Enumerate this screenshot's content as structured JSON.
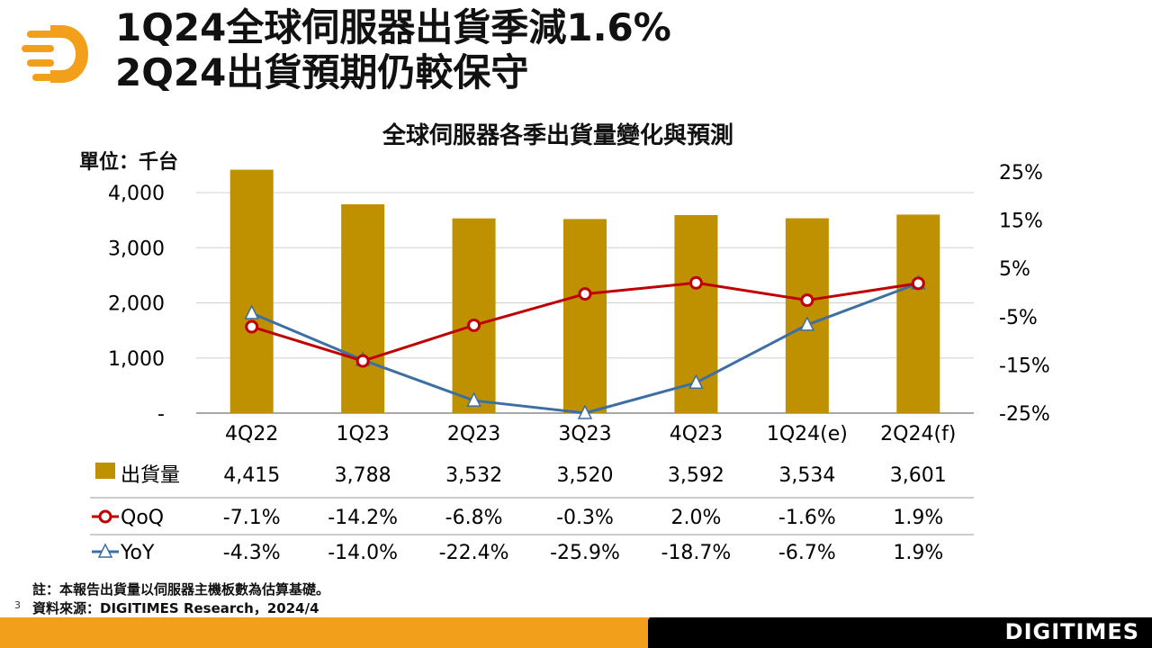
{
  "header": {
    "title_line1": "1Q24全球伺服器出貨季減1.6%",
    "title_line2": "2Q24出貨預期仍較保守"
  },
  "brand": "DIGITIMES",
  "page_number": "3",
  "footnote": "註：本報告出貨量以伺服器主機板數為估算基礎。",
  "source": "資料來源：DIGITIMES Research，2024/4",
  "colors": {
    "bar": "#bf9000",
    "qoq": "#c00000",
    "yoy": "#3e6fa3",
    "accent": "#f29f1c"
  },
  "chart_data": {
    "type": "bar",
    "title": "全球伺服器各季出貨量變化與預測",
    "unit_label": "單位：千台",
    "categories": [
      "4Q22",
      "1Q23",
      "2Q23",
      "3Q23",
      "4Q23",
      "1Q24(e)",
      "2Q24(f)"
    ],
    "left_axis": {
      "ylim": [
        0,
        4000
      ],
      "ticks": [
        0,
        1000,
        2000,
        3000,
        4000
      ],
      "tick_labels": [
        "-",
        "1,000",
        "2,000",
        "3,000",
        "4,000"
      ]
    },
    "right_axis": {
      "ylim": [
        -25,
        25
      ],
      "ticks": [
        -25,
        -15,
        -5,
        5,
        15,
        25
      ],
      "tick_labels": [
        "-25%",
        "-15%",
        "-5%",
        "5%",
        "15%",
        "25%"
      ]
    },
    "series": [
      {
        "name": "出貨量",
        "kind": "bar",
        "axis": "left",
        "values": [
          4415,
          3788,
          3532,
          3520,
          3592,
          3534,
          3601
        ],
        "labels": [
          "4,415",
          "3,788",
          "3,532",
          "3,520",
          "3,592",
          "3,534",
          "3,601"
        ]
      },
      {
        "name": "QoQ",
        "kind": "line",
        "axis": "right",
        "marker": "circle",
        "values": [
          -7.1,
          -14.2,
          -6.8,
          -0.3,
          2.0,
          -1.6,
          1.9
        ],
        "labels": [
          "-7.1%",
          "-14.2%",
          "-6.8%",
          "-0.3%",
          "2.0%",
          "-1.6%",
          "1.9%"
        ]
      },
      {
        "name": "YoY",
        "kind": "line",
        "axis": "right",
        "marker": "triangle",
        "values": [
          -4.3,
          -14.0,
          -22.4,
          -25.9,
          -18.7,
          -6.7,
          1.9
        ],
        "labels": [
          "-4.3%",
          "-14.0%",
          "-22.4%",
          "-25.9%",
          "-18.7%",
          "-6.7%",
          "1.9%"
        ]
      }
    ]
  }
}
